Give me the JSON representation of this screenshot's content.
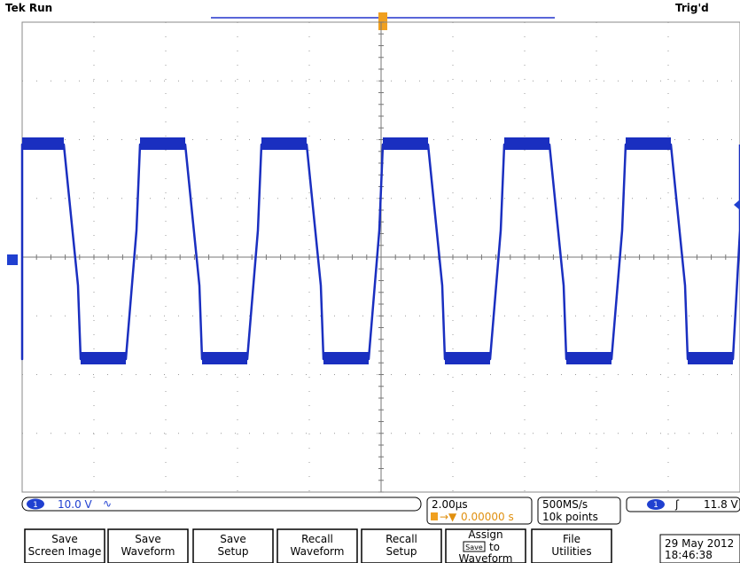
{
  "header": {
    "left": "Tek Run",
    "right": "Trig'd"
  },
  "status": {
    "channel_number": "1",
    "vertical_scale": "10.0 V",
    "horizontal_scale": "2.00µs",
    "trigger_position": "0.00000 s",
    "sample_rate": "500MS/s",
    "record_length": "10k points",
    "trigger_channel": "1",
    "trigger_level": "11.8 V"
  },
  "buttons": [
    {
      "lines": [
        "Save",
        "Screen Image"
      ]
    },
    {
      "lines": [
        "Save",
        "Waveform"
      ]
    },
    {
      "lines": [
        "Save",
        "Setup"
      ]
    },
    {
      "lines": [
        "Recall",
        "Waveform"
      ]
    },
    {
      "lines": [
        "Recall",
        "Setup"
      ]
    },
    {
      "lines": [
        "Assign",
        "Save",
        "to",
        "Waveform"
      ]
    },
    {
      "lines": [
        "File",
        "Utilities"
      ]
    }
  ],
  "date": "29 May 2012",
  "time": "18:46:38"
}
